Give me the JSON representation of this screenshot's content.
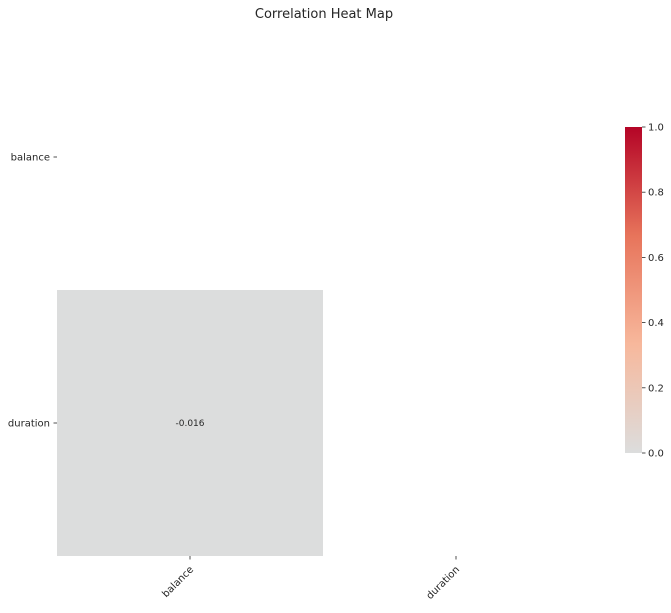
{
  "chart_data": {
    "type": "heatmap",
    "title": "Correlation Heat Map",
    "xlabel": "",
    "ylabel": "",
    "x_categories": [
      "balance",
      "duration"
    ],
    "y_categories": [
      "balance",
      "duration"
    ],
    "mask": "upper-triangle-and-diagonal",
    "cells": [
      {
        "row": "duration",
        "col": "balance",
        "value": -0.016,
        "label": "-0.016"
      }
    ],
    "colorbar": {
      "min": 0.0,
      "max": 1.0,
      "ticks": [
        "0.0",
        "0.2",
        "0.4",
        "0.6",
        "0.8",
        "1.0"
      ],
      "colormap": "coolwarm-diverging",
      "colors": [
        "#dcdddd",
        "#f7b89c",
        "#e7745b",
        "#b40426"
      ]
    },
    "tick_label_rotation_x": 45
  }
}
